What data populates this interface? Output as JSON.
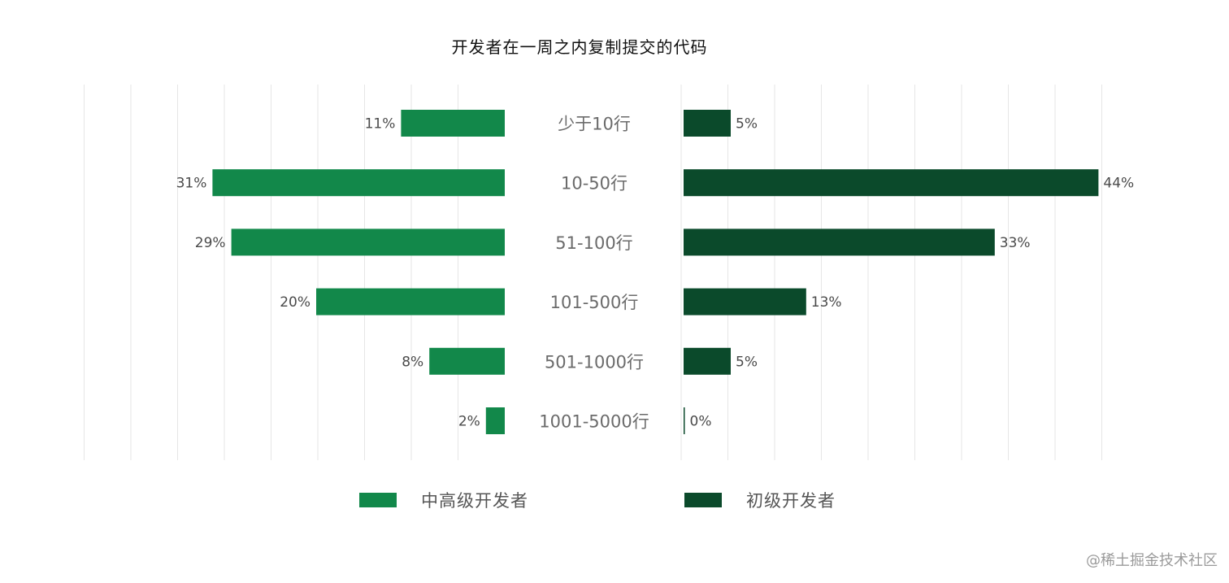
{
  "colors": {
    "senior": "#12884a",
    "junior": "#0b4a2b",
    "grid": "#e6e6e6"
  },
  "chart_data": {
    "type": "bar",
    "orientation": "horizontal-butterfly",
    "title": "开发者在一周之内复制提交的代码",
    "categories": [
      "少于10行",
      "10-50行",
      "51-100行",
      "101-500行",
      "501-1000行",
      "1001-5000行"
    ],
    "series": [
      {
        "name": "中高级开发者",
        "side": "left",
        "color": "#12884a",
        "values": [
          11,
          31,
          29,
          20,
          8,
          2
        ],
        "labels": [
          "11%",
          "31%",
          "29%",
          "20%",
          "8%",
          "2%"
        ]
      },
      {
        "name": "初级开发者",
        "side": "right",
        "color": "#0b4a2b",
        "values": [
          5,
          44,
          33,
          13,
          5,
          0
        ],
        "labels": [
          "5%",
          "44%",
          "33%",
          "13%",
          "5%",
          "0%"
        ]
      }
    ],
    "xlim": [
      0,
      45
    ],
    "grid": true,
    "legend": "bottom"
  },
  "legend": {
    "senior_label": "中高级开发者",
    "junior_label": "初级开发者"
  },
  "watermark": "@稀土掘金技术社区"
}
